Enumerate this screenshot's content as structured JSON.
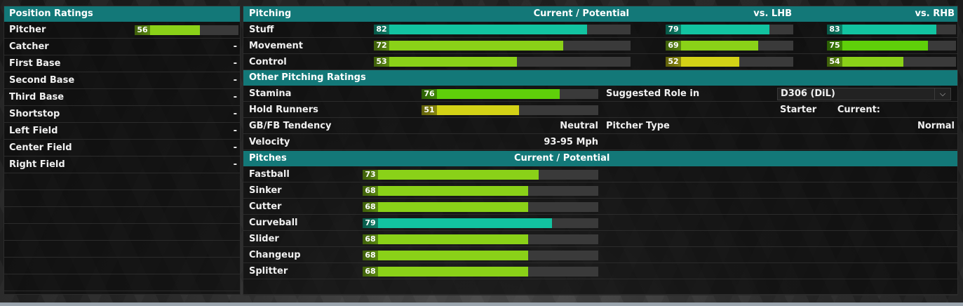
{
  "colors": {
    "header": "#137878",
    "green": "#5fcf0a",
    "lightgreen": "#8ad118",
    "teal": "#12c3a0",
    "yellow": "#d3d216"
  },
  "position_ratings": {
    "title": "Position Ratings",
    "rows": [
      {
        "label": "Pitcher",
        "value": "56",
        "fill": 0.56,
        "color": "lightgreen"
      },
      {
        "label": "Catcher",
        "value": "-"
      },
      {
        "label": "First Base",
        "value": "-"
      },
      {
        "label": "Second Base",
        "value": "-"
      },
      {
        "label": "Third Base",
        "value": "-"
      },
      {
        "label": "Shortstop",
        "value": "-"
      },
      {
        "label": "Left Field",
        "value": "-"
      },
      {
        "label": "Center Field",
        "value": "-"
      },
      {
        "label": "Right Field",
        "value": "-"
      }
    ]
  },
  "pitching": {
    "title": "Pitching",
    "col_current": "Current / Potential",
    "col_lhb": "vs. LHB",
    "col_rhb": "vs. RHB",
    "rows": [
      {
        "label": "Stuff",
        "cur": {
          "value": "82",
          "fill": 0.82,
          "color": "teal"
        },
        "lhb": {
          "value": "79",
          "fill": 0.79,
          "color": "teal"
        },
        "rhb": {
          "value": "83",
          "fill": 0.83,
          "color": "teal"
        }
      },
      {
        "label": "Movement",
        "cur": {
          "value": "72",
          "fill": 0.72,
          "color": "lightgreen"
        },
        "lhb": {
          "value": "69",
          "fill": 0.69,
          "color": "lightgreen"
        },
        "rhb": {
          "value": "75",
          "fill": 0.75,
          "color": "green"
        }
      },
      {
        "label": "Control",
        "cur": {
          "value": "53",
          "fill": 0.53,
          "color": "lightgreen"
        },
        "lhb": {
          "value": "52",
          "fill": 0.52,
          "color": "yellow"
        },
        "rhb": {
          "value": "54",
          "fill": 0.54,
          "color": "lightgreen"
        }
      }
    ]
  },
  "other": {
    "title": "Other Pitching Ratings",
    "stamina": {
      "label": "Stamina",
      "value": "76",
      "fill": 0.76,
      "color": "green"
    },
    "hold": {
      "label": "Hold Runners",
      "value": "51",
      "fill": 0.51,
      "color": "yellow"
    },
    "gbfb": {
      "label": "GB/FB Tendency",
      "value": "Neutral"
    },
    "velocity": {
      "label": "Velocity",
      "value": "93-95 Mph"
    },
    "suggested_role_label": "Suggested Role in",
    "suggested_role_value": "D306 (DiL)",
    "current_label": "Current:",
    "current_value": "Starter",
    "pitcher_type_label": "Pitcher Type",
    "pitcher_type_value": "Normal"
  },
  "pitches": {
    "title": "Pitches",
    "col_current": "Current / Potential",
    "rows": [
      {
        "label": "Fastball",
        "value": "73",
        "fill": 0.73,
        "color": "lightgreen"
      },
      {
        "label": "Sinker",
        "value": "68",
        "fill": 0.68,
        "color": "lightgreen"
      },
      {
        "label": "Cutter",
        "value": "68",
        "fill": 0.68,
        "color": "lightgreen"
      },
      {
        "label": "Curveball",
        "value": "79",
        "fill": 0.79,
        "color": "teal"
      },
      {
        "label": "Slider",
        "value": "68",
        "fill": 0.68,
        "color": "lightgreen"
      },
      {
        "label": "Changeup",
        "value": "68",
        "fill": 0.68,
        "color": "lightgreen"
      },
      {
        "label": "Splitter",
        "value": "68",
        "fill": 0.68,
        "color": "lightgreen"
      }
    ]
  }
}
